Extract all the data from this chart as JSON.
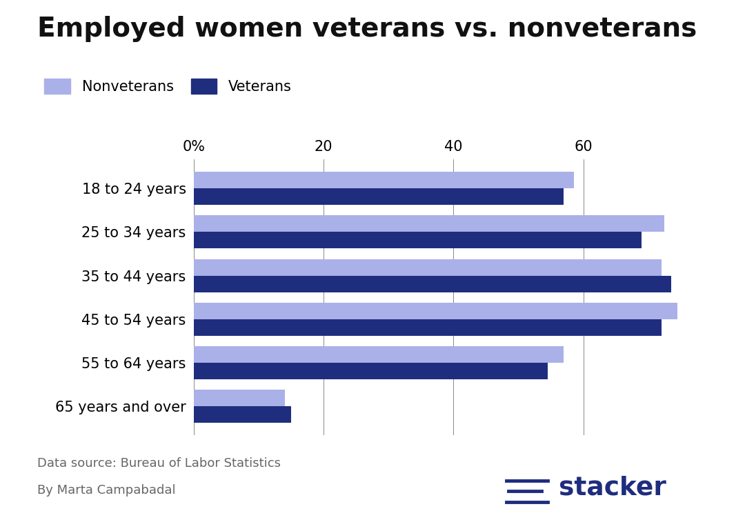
{
  "title": "Employed women veterans vs. nonveterans",
  "categories": [
    "18 to 24 years",
    "25 to 34 years",
    "35 to 44 years",
    "45 to 54 years",
    "55 to 64 years",
    "65 years and over"
  ],
  "veterans": [
    57.0,
    69.0,
    73.5,
    72.0,
    54.5,
    15.0
  ],
  "nonveterans": [
    58.5,
    72.5,
    72.0,
    74.5,
    57.0,
    14.0
  ],
  "veteran_color": "#1f2d7e",
  "nonveteran_color": "#aab0e8",
  "background_color": "#ffffff",
  "xticks": [
    0,
    20,
    40,
    60
  ],
  "xtick_labels": [
    "0%",
    "20",
    "40",
    "60"
  ],
  "xlim": [
    0,
    78
  ],
  "bar_height": 0.38,
  "footnote_line1": "Data source: Bureau of Labor Statistics",
  "footnote_line2": "By Marta Campabadal",
  "legend_nonvet": "Nonveterans",
  "legend_vet": "Veterans",
  "title_fontsize": 28,
  "label_fontsize": 15,
  "tick_fontsize": 15,
  "footnote_fontsize": 13
}
